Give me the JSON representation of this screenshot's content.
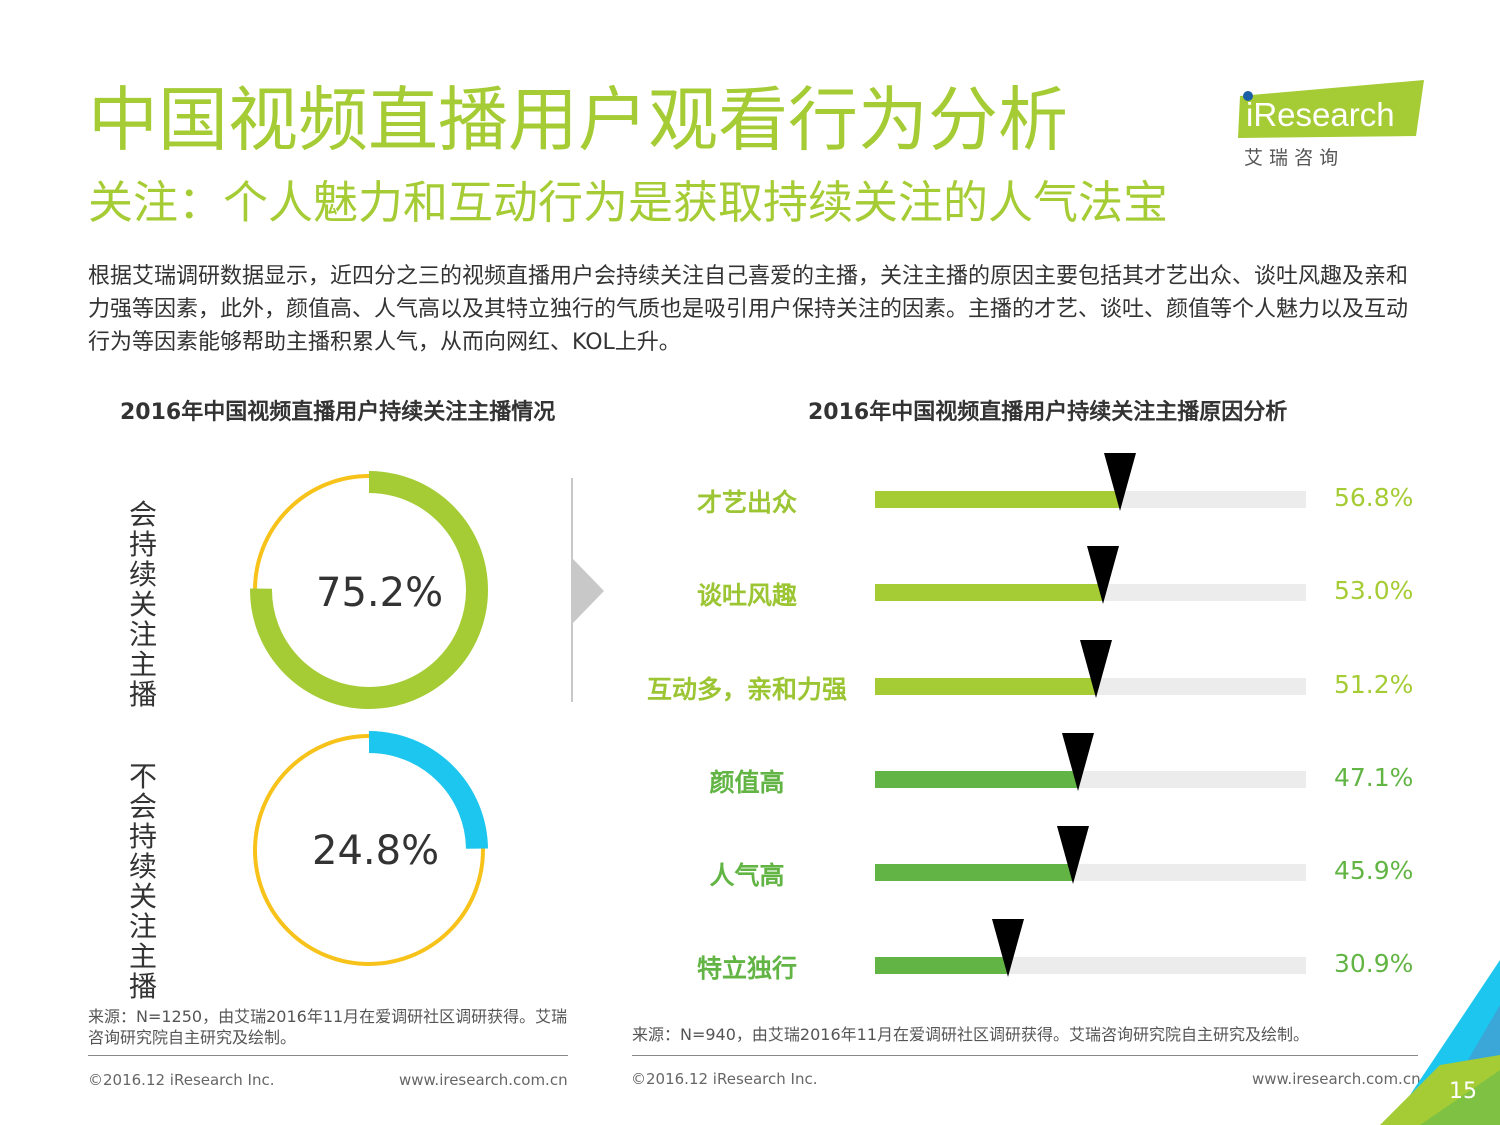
{
  "header": {
    "title": "中国视频直播用户观看行为分析",
    "subtitle": "关注：个人魅力和互动行为是获取持续关注的人气法宝",
    "logo_text": "iResearch",
    "logo_sub": "艾 瑞 咨 询"
  },
  "intro": "根据艾瑞调研数据显示，近四分之三的视频直播用户会持续关注自己喜爱的主播，关注主播的原因主要包括其才艺出众、谈吐风趣及亲和力强等因素，此外，颜值高、人气高以及其特立独行的气质也是吸引用户保持关注的因素。主播的才艺、谈吐、颜值等个人魅力以及互动行为等因素能够帮助主播积累人气，从而向网红、KOL上升。",
  "colors": {
    "accent": "#a5cc35",
    "dark_green": "#62b544",
    "yellow": "#f7c219",
    "cyan": "#1cc6ee",
    "track": "#ececec"
  },
  "chart_data": [
    {
      "type": "pie",
      "title": "2016年中国视频直播用户持续关注主播情况",
      "slices": [
        {
          "label": "会持续关注主播",
          "value": 75.2,
          "display": "75.2%"
        },
        {
          "label": "不会持续关注主播",
          "value": 24.8,
          "display": "24.8%"
        }
      ],
      "source": "来源：N=1250，由艾瑞2016年11月在爱调研社区调研获得。艾瑞咨询研究院自主研究及绘制。"
    },
    {
      "type": "bar",
      "title": "2016年中国视频直播用户持续关注主播原因分析",
      "categories": [
        "才艺出众",
        "谈吐风趣",
        "互动多，亲和力强",
        "颜值高",
        "人气高",
        "特立独行"
      ],
      "values": [
        56.8,
        53.0,
        51.2,
        47.1,
        45.9,
        30.9
      ],
      "value_labels": [
        "56.8%",
        "53.0%",
        "51.2%",
        "47.1%",
        "45.9%",
        "30.9%"
      ],
      "xlim": [
        0,
        100
      ],
      "source": "来源：N=940，由艾瑞2016年11月在爱调研社区调研获得。艾瑞咨询研究院自主研究及绘制。"
    }
  ],
  "footer": {
    "copyright": "©2016.12 iResearch Inc.",
    "website": "www.iresearch.com.cn",
    "page": "15"
  }
}
